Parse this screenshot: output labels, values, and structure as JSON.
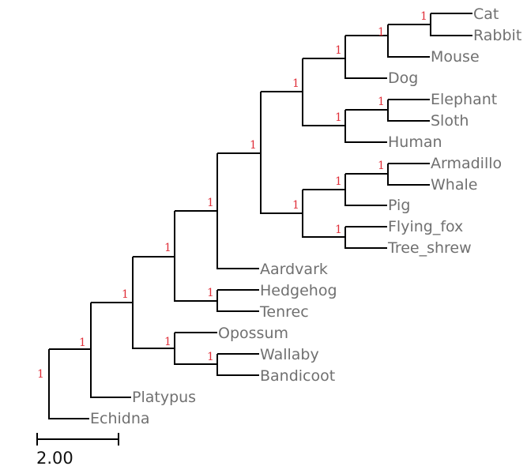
{
  "tree": {
    "leaves": [
      {
        "id": "cat",
        "label": "Cat"
      },
      {
        "id": "rabbit",
        "label": "Rabbit"
      },
      {
        "id": "mouse",
        "label": "Mouse"
      },
      {
        "id": "dog",
        "label": "Dog"
      },
      {
        "id": "elephant",
        "label": "Elephant"
      },
      {
        "id": "sloth",
        "label": "Sloth"
      },
      {
        "id": "human",
        "label": "Human"
      },
      {
        "id": "armadillo",
        "label": "Armadillo"
      },
      {
        "id": "whale",
        "label": "Whale"
      },
      {
        "id": "pig",
        "label": "Pig"
      },
      {
        "id": "flying-fox",
        "label": "Flying_fox"
      },
      {
        "id": "tree-shrew",
        "label": "Tree_shrew"
      },
      {
        "id": "aardvark",
        "label": "Aardvark"
      },
      {
        "id": "hedgehog",
        "label": "Hedgehog"
      },
      {
        "id": "tenrec",
        "label": "Tenrec"
      },
      {
        "id": "opossum",
        "label": "Opossum"
      },
      {
        "id": "wallaby",
        "label": "Wallaby"
      },
      {
        "id": "bandicoot",
        "label": "Bandicoot"
      },
      {
        "id": "platypus",
        "label": "Platypus"
      },
      {
        "id": "echidna",
        "label": "Echidna"
      }
    ],
    "support_values": {
      "root": "1",
      "cat_rabbit": "1",
      "mouse_clade": "1",
      "dog_clade": "1",
      "laurasia_euarchonto": "1",
      "elephant_sloth": "1",
      "elephant_sloth_human": "1",
      "boreo_group": "1",
      "armadillo_whale": "1",
      "armadillo_whale_pig": "1",
      "pig_bat_group": "1",
      "flyingfox_treeshrew": "1",
      "placentals_core": "1",
      "hedgehog_tenrec": "1",
      "eutheria": "1",
      "wallaby_bandicoot": "1",
      "marsupials": "1",
      "therians": "1"
    },
    "scale_bar": {
      "label": "2.00"
    }
  }
}
